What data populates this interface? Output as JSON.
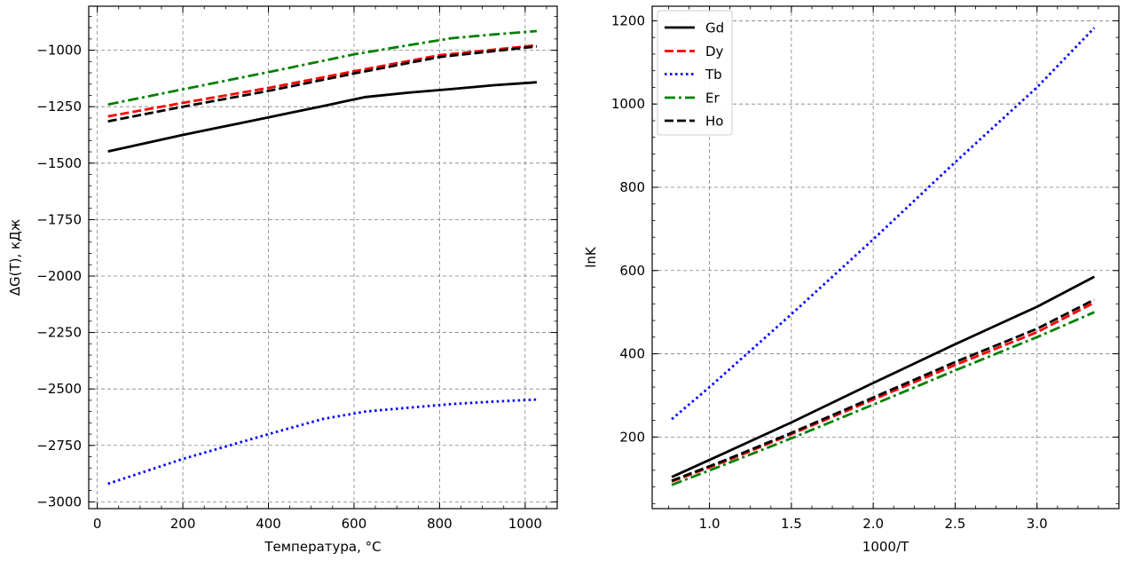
{
  "chart_data": [
    {
      "type": "line",
      "xlabel": "Температура, °C",
      "ylabel": "ΔG(T), кДж",
      "xlim": [
        -20,
        1075
      ],
      "ylim": [
        -3030,
        -805
      ],
      "xticks": [
        0,
        200,
        400,
        600,
        800,
        1000
      ],
      "xtick_labels": [
        "0",
        "200",
        "400",
        "600",
        "800",
        "1000"
      ],
      "yticks": [
        -1000,
        -1250,
        -1500,
        -1750,
        -2000,
        -2250,
        -2500,
        -2750,
        -3000
      ],
      "ytick_labels": [
        "−1000",
        "−1250",
        "−1500",
        "−1750",
        "−2000",
        "−2250",
        "−2500",
        "−2750",
        "−3000"
      ],
      "grid": true,
      "legend": "none",
      "series": [
        {
          "key": "gd",
          "color": "#000000",
          "dash": "solid",
          "x": [
            25,
            200,
            400,
            525,
            627,
            727,
            827,
            927,
            1027
          ],
          "y": [
            -1448,
            -1375,
            -1297,
            -1248,
            -1207,
            -1188,
            -1172,
            -1155,
            -1142
          ]
        },
        {
          "key": "dy",
          "color": "#ff0000",
          "dash": "dashed",
          "x": [
            25,
            200,
            400,
            600,
            800,
            1027
          ],
          "y": [
            -1293,
            -1233,
            -1167,
            -1093,
            -1022,
            -978
          ]
        },
        {
          "key": "tb",
          "color": "#0000ff",
          "dash": "dotted",
          "x": [
            25,
            200,
            400,
            527,
            627,
            727,
            827,
            927,
            1027
          ],
          "y": [
            -2920,
            -2810,
            -2700,
            -2633,
            -2600,
            -2583,
            -2567,
            -2556,
            -2547
          ]
        },
        {
          "key": "er",
          "color": "#008000",
          "dash": "dashdot",
          "x": [
            25,
            200,
            400,
            600,
            727,
            827,
            927,
            1027
          ],
          "y": [
            -1240,
            -1173,
            -1097,
            -1018,
            -978,
            -947,
            -930,
            -915
          ]
        },
        {
          "key": "ho",
          "color": "#000000",
          "dash": "dashed",
          "x": [
            25,
            200,
            400,
            600,
            800,
            1027
          ],
          "y": [
            -1315,
            -1250,
            -1180,
            -1103,
            -1030,
            -983
          ]
        }
      ]
    },
    {
      "type": "line",
      "xlabel": "1000/T",
      "ylabel": "lnK",
      "xlim": [
        0.65,
        3.5
      ],
      "ylim": [
        28,
        1235
      ],
      "xticks": [
        1.0,
        1.5,
        2.0,
        2.5,
        3.0
      ],
      "xtick_labels": [
        "1.0",
        "1.5",
        "2.0",
        "2.5",
        "3.0"
      ],
      "yticks": [
        200,
        400,
        600,
        800,
        1000,
        1200
      ],
      "ytick_labels": [
        "200",
        "400",
        "600",
        "800",
        "1000",
        "1200"
      ],
      "grid": true,
      "legend": "top-left",
      "series": [
        {
          "key": "gd",
          "name": "Gd",
          "color": "#000000",
          "dash": "solid",
          "x": [
            0.77,
            1.1,
            1.5,
            2.0,
            2.5,
            3.0,
            3.35
          ],
          "y": [
            104,
            163,
            235,
            330,
            423,
            513,
            585
          ]
        },
        {
          "key": "dy",
          "name": "Dy",
          "color": "#ff0000",
          "dash": "dashed",
          "x": [
            0.77,
            1.1,
            1.5,
            2.0,
            2.5,
            3.0,
            3.35
          ],
          "y": [
            93,
            142,
            207,
            290,
            373,
            452,
            523
          ]
        },
        {
          "key": "tb",
          "name": "Tb",
          "color": "#0000ff",
          "dash": "dotted",
          "x": [
            0.77,
            1.0,
            1.5,
            2.0,
            2.5,
            3.0,
            3.35
          ],
          "y": [
            243,
            320,
            495,
            675,
            860,
            1040,
            1183
          ]
        },
        {
          "key": "er",
          "name": "Er",
          "color": "#008000",
          "dash": "dashdot",
          "x": [
            0.77,
            1.1,
            1.5,
            2.0,
            2.5,
            3.0,
            3.35
          ],
          "y": [
            85,
            135,
            197,
            278,
            360,
            440,
            500
          ]
        },
        {
          "key": "ho",
          "name": "Ho",
          "color": "#000000",
          "dash": "dashed",
          "x": [
            0.77,
            1.1,
            1.5,
            2.0,
            2.5,
            3.0,
            3.35
          ],
          "y": [
            95,
            145,
            210,
            295,
            380,
            460,
            530
          ]
        }
      ]
    }
  ]
}
